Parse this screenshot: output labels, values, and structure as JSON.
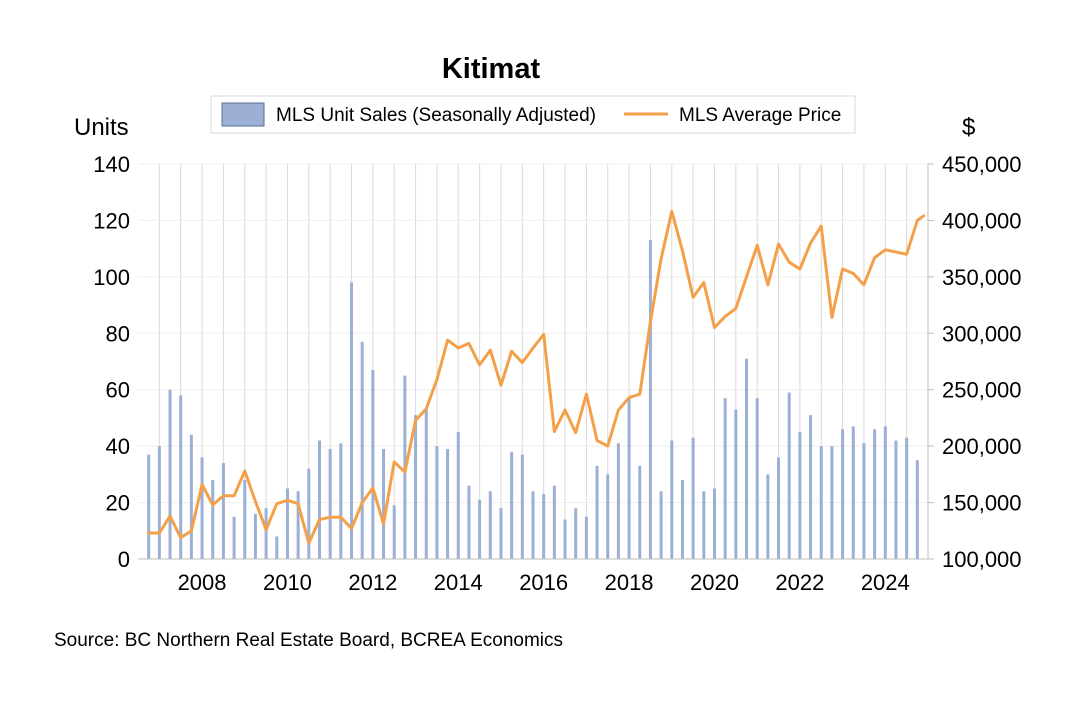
{
  "chart_data": {
    "type": "bar+line",
    "title": "Kitimat",
    "left_axis": {
      "label": "Units",
      "range": [
        0,
        140
      ],
      "ticks": [
        "0",
        "20",
        "40",
        "60",
        "80",
        "100",
        "120",
        "140"
      ]
    },
    "right_axis": {
      "label": "$",
      "range": [
        100000,
        450000
      ],
      "ticks": [
        "100,000",
        "150,000",
        "200,000",
        "250,000",
        "300,000",
        "350,000",
        "400,000",
        "450,000"
      ]
    },
    "x_range": [
      2006.5,
      2025.0
    ],
    "x_tick_labels": [
      "2008",
      "2010",
      "2012",
      "2014",
      "2016",
      "2018",
      "2020",
      "2022",
      "2024"
    ],
    "grid": "vertical",
    "legend_position": "top",
    "colors": {
      "bars": "#9bb0d4",
      "line": "#f4a04a",
      "grid": "#d9d9d9"
    },
    "series": [
      {
        "name": "MLS Unit Sales (Seasonally Adjusted)",
        "type": "bar",
        "axis": "left",
        "x": [
          2006.75,
          2007.0,
          2007.25,
          2007.5,
          2007.75,
          2008.0,
          2008.25,
          2008.5,
          2008.75,
          2009.0,
          2009.25,
          2009.5,
          2009.75,
          2010.0,
          2010.25,
          2010.5,
          2010.75,
          2011.0,
          2011.25,
          2011.5,
          2011.75,
          2012.0,
          2012.25,
          2012.5,
          2012.75,
          2013.0,
          2013.25,
          2013.5,
          2013.75,
          2014.0,
          2014.25,
          2014.5,
          2014.75,
          2015.0,
          2015.25,
          2015.5,
          2015.75,
          2016.0,
          2016.25,
          2016.5,
          2016.75,
          2017.0,
          2017.25,
          2017.5,
          2017.75,
          2018.0,
          2018.25,
          2018.5,
          2018.75,
          2019.0,
          2019.25,
          2019.5,
          2019.75,
          2020.0,
          2020.25,
          2020.5,
          2020.75,
          2021.0,
          2021.25,
          2021.5,
          2021.75,
          2022.0,
          2022.25,
          2022.5,
          2022.75,
          2023.0,
          2023.25,
          2023.5,
          2023.75,
          2024.0,
          2024.25,
          2024.5,
          2024.75
        ],
        "values": [
          37,
          40,
          60,
          58,
          44,
          36,
          28,
          34,
          15,
          28,
          16,
          18,
          8,
          25,
          24,
          32,
          42,
          39,
          41,
          98,
          77,
          67,
          39,
          19,
          65,
          51,
          53,
          40,
          39,
          45,
          26,
          21,
          24,
          18,
          38,
          37,
          24,
          23,
          26,
          14,
          18,
          15,
          33,
          30,
          41,
          57,
          33,
          113,
          24,
          42,
          28,
          43,
          24,
          25,
          57,
          53,
          71,
          57,
          30,
          36,
          59,
          45,
          51,
          40,
          40,
          46,
          47,
          41,
          46,
          47,
          42,
          43,
          35
        ]
      },
      {
        "name": "MLS Average Price",
        "type": "line",
        "axis": "right",
        "x": [
          2006.75,
          2007.0,
          2007.25,
          2007.5,
          2007.75,
          2008.0,
          2008.25,
          2008.5,
          2008.75,
          2009.0,
          2009.25,
          2009.5,
          2009.75,
          2010.0,
          2010.25,
          2010.5,
          2010.75,
          2011.0,
          2011.25,
          2011.5,
          2011.75,
          2012.0,
          2012.25,
          2012.5,
          2012.75,
          2013.0,
          2013.25,
          2013.5,
          2013.75,
          2014.0,
          2014.25,
          2014.5,
          2014.75,
          2015.0,
          2015.25,
          2015.5,
          2015.75,
          2016.0,
          2016.25,
          2016.5,
          2016.75,
          2017.0,
          2017.25,
          2017.5,
          2017.75,
          2018.0,
          2018.25,
          2018.5,
          2018.75,
          2019.0,
          2019.25,
          2019.5,
          2019.75,
          2020.0,
          2020.25,
          2020.5,
          2020.75,
          2021.0,
          2021.25,
          2021.5,
          2021.75,
          2022.0,
          2022.25,
          2022.5,
          2022.75,
          2023.0,
          2023.25,
          2023.5,
          2023.75,
          2024.0,
          2024.25,
          2024.5,
          2024.75,
          2024.9
        ],
        "values": [
          123000,
          123000,
          138000,
          119000,
          125000,
          166000,
          148000,
          156000,
          156000,
          178000,
          151000,
          126000,
          149000,
          152000,
          149000,
          114000,
          135000,
          137000,
          137000,
          127000,
          150000,
          163000,
          131000,
          186000,
          177000,
          223000,
          233000,
          259000,
          294000,
          287000,
          291000,
          272000,
          285000,
          254000,
          284000,
          274000,
          287000,
          299000,
          213000,
          232000,
          212000,
          246000,
          205000,
          200000,
          232000,
          243000,
          246000,
          310000,
          366000,
          408000,
          373000,
          332000,
          345000,
          305000,
          315000,
          322000,
          350000,
          378000,
          343000,
          379000,
          363000,
          357000,
          380000,
          395000,
          314000,
          357000,
          353000,
          343000,
          367000,
          374000,
          372000,
          370000,
          400000,
          404000
        ]
      }
    ]
  },
  "source": "Source:  BC Northern Real Estate Board, BCREA Economics"
}
